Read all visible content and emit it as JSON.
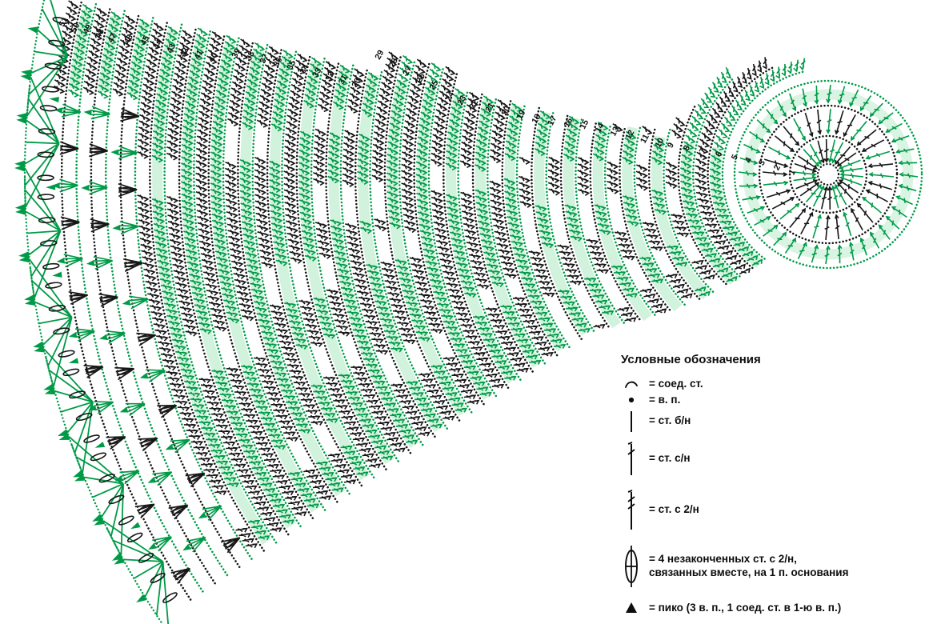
{
  "diagram": {
    "kind": "crochet-pattern-chart",
    "row_numbers": [
      1,
      2,
      3,
      4,
      5,
      6,
      7,
      8,
      9,
      10,
      11,
      12,
      13,
      14,
      15,
      16,
      17,
      18,
      19,
      20,
      21,
      22,
      23,
      24,
      25,
      26,
      27,
      28,
      29,
      30,
      31,
      32,
      33,
      34,
      35,
      36,
      37,
      38,
      39,
      40,
      41,
      42,
      43,
      44,
      45,
      46,
      47,
      48,
      49,
      50,
      51
    ],
    "colors": {
      "green": "#009A47",
      "black": "#161616",
      "halo": "#C9F0D7",
      "number": "#111111",
      "background": "#FFFFFF"
    }
  },
  "legend": {
    "title": "Условные обозначения",
    "items": [
      {
        "icon": "slip-stitch-icon",
        "label": "= соед. ст."
      },
      {
        "icon": "chain-stitch-icon",
        "label": "= в. п."
      },
      {
        "icon": "single-crochet-icon",
        "label": "= ст. б/н"
      },
      {
        "icon": "double-crochet-icon",
        "label": "= ст. с/н"
      },
      {
        "icon": "treble-crochet-icon",
        "label": "= ст. с 2/н"
      },
      {
        "icon": "cluster-4tr-icon",
        "label": "= 4 незаконченных ст. с 2/н,",
        "label2": "связанных вместе, на 1 п. основания"
      },
      {
        "icon": "picot-icon",
        "label": "= пико (3 в. п., 1 соед. ст. в 1-ю в. п.)"
      }
    ]
  }
}
